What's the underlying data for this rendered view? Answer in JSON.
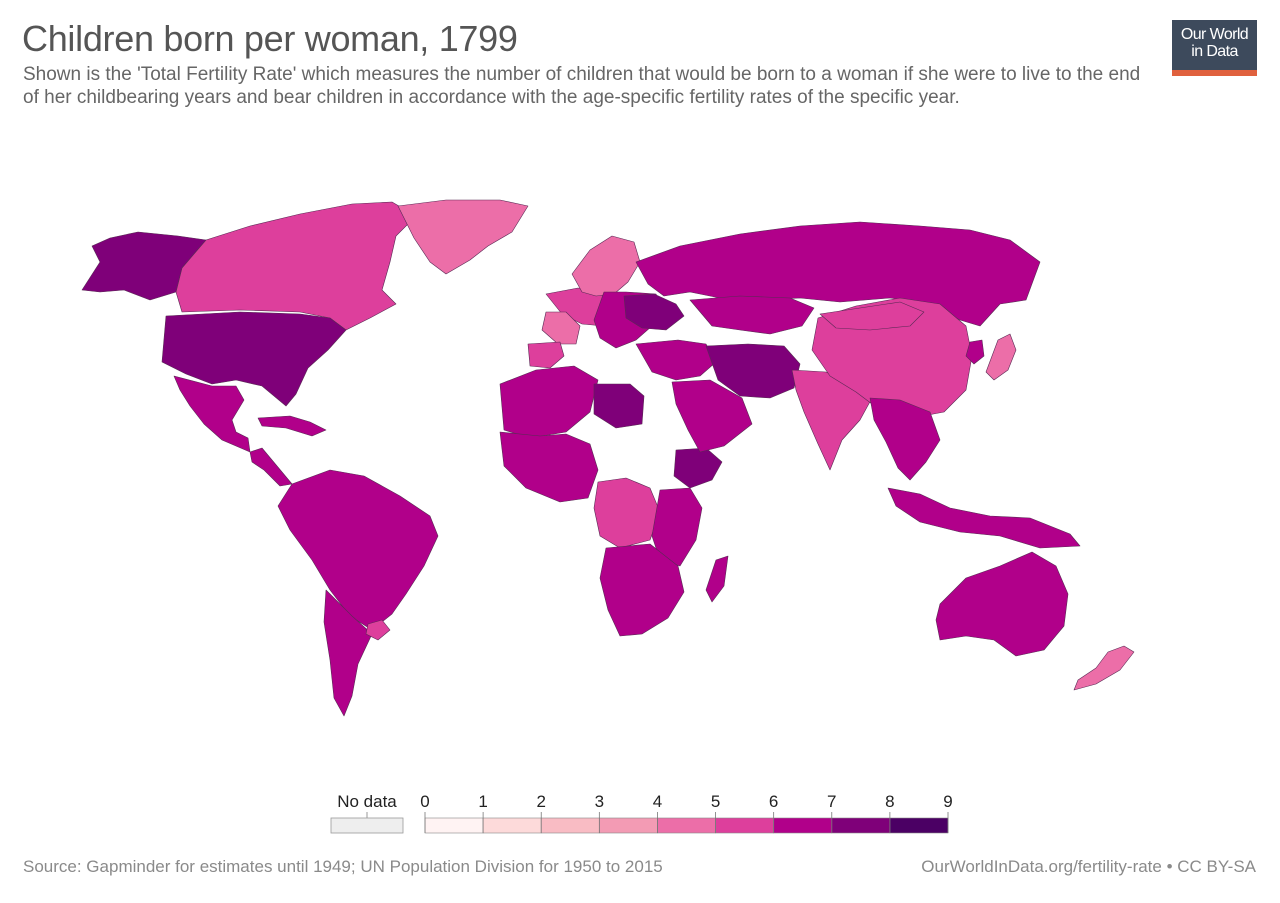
{
  "title": "Children born per woman, 1799",
  "subtitle": "Shown is the 'Total Fertility Rate' which measures the number of children that would be born to a woman if she were to live to the end of her childbearing years and bear children in accordance with the age-specific fertility rates of the specific year.",
  "logo": {
    "line1": "Our World",
    "line2": "in Data",
    "bg_color": "#3d4a5c",
    "accent_color": "#e0613e"
  },
  "legend": {
    "no_data_label": "No data",
    "no_data_color": "#eeeeee",
    "ticks": [
      "0",
      "1",
      "2",
      "3",
      "4",
      "5",
      "6",
      "7",
      "8",
      "9"
    ],
    "bins": [
      {
        "from": 0,
        "to": 1,
        "color": "#fff3f3"
      },
      {
        "from": 1,
        "to": 2,
        "color": "#fddada"
      },
      {
        "from": 2,
        "to": 3,
        "color": "#f9bcc4"
      },
      {
        "from": 3,
        "to": 4,
        "color": "#f39bb4"
      },
      {
        "from": 4,
        "to": 5,
        "color": "#ec6ea8"
      },
      {
        "from": 5,
        "to": 6,
        "color": "#dd3f9c"
      },
      {
        "from": 6,
        "to": 7,
        "color": "#b1008a"
      },
      {
        "from": 7,
        "to": 8,
        "color": "#7f0079"
      },
      {
        "from": 8,
        "to": 9,
        "color": "#4b0064"
      }
    ]
  },
  "chart_data": {
    "type": "choropleth",
    "year": 1799,
    "regions": [
      {
        "name": "Alaska",
        "value": 7.1
      },
      {
        "name": "Canada",
        "value": 5.6
      },
      {
        "name": "Greenland",
        "value": 4.6
      },
      {
        "name": "United States",
        "value": 7.0
      },
      {
        "name": "Mexico",
        "value": 6.8
      },
      {
        "name": "Central America",
        "value": 6.7
      },
      {
        "name": "Caribbean",
        "value": 6.4
      },
      {
        "name": "South America",
        "value": 6.5
      },
      {
        "name": "Argentina",
        "value": 6.6
      },
      {
        "name": "Uruguay",
        "value": 5.8
      },
      {
        "name": "Western Europe",
        "value": 5.5
      },
      {
        "name": "France",
        "value": 4.4
      },
      {
        "name": "Spain",
        "value": 5.3
      },
      {
        "name": "Scandinavia",
        "value": 4.6
      },
      {
        "name": "Eastern Europe",
        "value": 6.6
      },
      {
        "name": "Ukraine",
        "value": 7.3
      },
      {
        "name": "Russia",
        "value": 6.8
      },
      {
        "name": "Kazakhstan",
        "value": 6.5
      },
      {
        "name": "North Africa",
        "value": 6.6
      },
      {
        "name": "Libya",
        "value": 7.4
      },
      {
        "name": "West Africa",
        "value": 6.3
      },
      {
        "name": "Central Africa",
        "value": 5.6
      },
      {
        "name": "Ethiopia",
        "value": 7.3
      },
      {
        "name": "East Africa",
        "value": 6.4
      },
      {
        "name": "Southern Africa",
        "value": 6.2
      },
      {
        "name": "Madagascar",
        "value": 6.3
      },
      {
        "name": "Middle East",
        "value": 6.9
      },
      {
        "name": "Arabian Peninsula",
        "value": 6.6
      },
      {
        "name": "Iran and Afghanistan",
        "value": 7.2
      },
      {
        "name": "India",
        "value": 5.6
      },
      {
        "name": "China",
        "value": 5.5
      },
      {
        "name": "Mongolia",
        "value": 5.7
      },
      {
        "name": "Southeast Asia",
        "value": 6.2
      },
      {
        "name": "Indonesia",
        "value": 6.3
      },
      {
        "name": "Japan",
        "value": 4.7
      },
      {
        "name": "Korea",
        "value": 6.1
      },
      {
        "name": "Australia",
        "value": 6.6
      },
      {
        "name": "New Zealand",
        "value": 4.8
      }
    ]
  },
  "footer": {
    "source": "Source: Gapminder for estimates until 1949; UN Population Division for 1950 to 2015",
    "url": "OurWorldInData.org/fertility-rate • CC BY-SA"
  }
}
